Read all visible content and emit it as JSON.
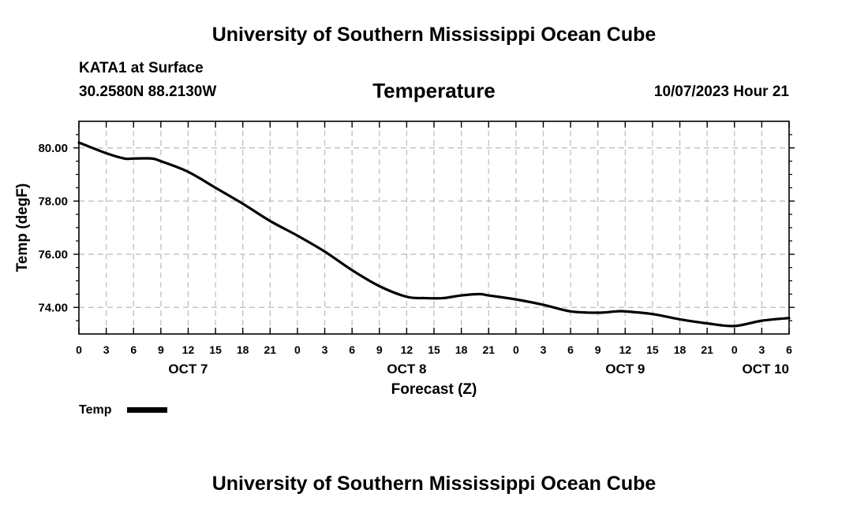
{
  "header": {
    "title": "University of Southern Mississippi Ocean Cube",
    "station": "KATA1 at Surface",
    "coordinates": "30.2580N  88.2130W",
    "variable": "Temperature",
    "valid_time": "10/07/2023 Hour 21"
  },
  "footer": {
    "title": "University of Southern Mississippi Ocean Cube"
  },
  "colors": {
    "line": "#000000",
    "grid": "#bbbbbb",
    "background": "#ffffff"
  },
  "chart_data": {
    "type": "line",
    "title": "Temperature",
    "xlabel": "Forecast (Z)",
    "ylabel": "Temp (degF)",
    "xlim": [
      0,
      78
    ],
    "ylim": [
      73.0,
      81.0
    ],
    "grid": true,
    "x_tick_values": [
      0,
      3,
      6,
      9,
      12,
      15,
      18,
      21,
      24,
      27,
      30,
      33,
      36,
      39,
      42,
      45,
      48,
      51,
      54,
      57,
      60,
      63,
      66,
      69,
      72,
      75,
      78
    ],
    "x_tick_labels": [
      "0",
      "3",
      "6",
      "9",
      "12",
      "15",
      "18",
      "21",
      "0",
      "3",
      "6",
      "9",
      "12",
      "15",
      "18",
      "21",
      "0",
      "3",
      "6",
      "9",
      "12",
      "15",
      "18",
      "21",
      "0",
      "3",
      "6"
    ],
    "date_labels": [
      {
        "x": 12,
        "label": "OCT 7"
      },
      {
        "x": 36,
        "label": "OCT 8"
      },
      {
        "x": 60,
        "label": "OCT 9"
      },
      {
        "x": 78,
        "label": "OCT 10"
      }
    ],
    "y_tick_values": [
      74,
      76,
      78,
      80
    ],
    "y_tick_labels": [
      "74.00",
      "76.00",
      "78.00",
      "80.00"
    ],
    "y_minor_ticks": [
      73.5,
      74.5,
      75,
      75.5,
      76.5,
      77,
      77.5,
      78.5,
      79,
      79.5,
      80.5
    ],
    "legend": {
      "label": "Temp",
      "placement": "bottom-left"
    },
    "series": [
      {
        "name": "Temp",
        "x": [
          0,
          3,
          5,
          6,
          8,
          9,
          12,
          15,
          18,
          21,
          24,
          27,
          30,
          33,
          36,
          38,
          40,
          42,
          44,
          45,
          48,
          51,
          54,
          57,
          59,
          60,
          63,
          66,
          69,
          72,
          75,
          78
        ],
        "values": [
          80.2,
          79.8,
          79.6,
          79.6,
          79.6,
          79.5,
          79.1,
          78.5,
          77.9,
          77.25,
          76.7,
          76.1,
          75.4,
          74.8,
          74.4,
          74.35,
          74.35,
          74.45,
          74.5,
          74.45,
          74.3,
          74.1,
          73.85,
          73.8,
          73.85,
          73.85,
          73.75,
          73.55,
          73.4,
          73.3,
          73.5,
          73.6
        ]
      }
    ]
  }
}
